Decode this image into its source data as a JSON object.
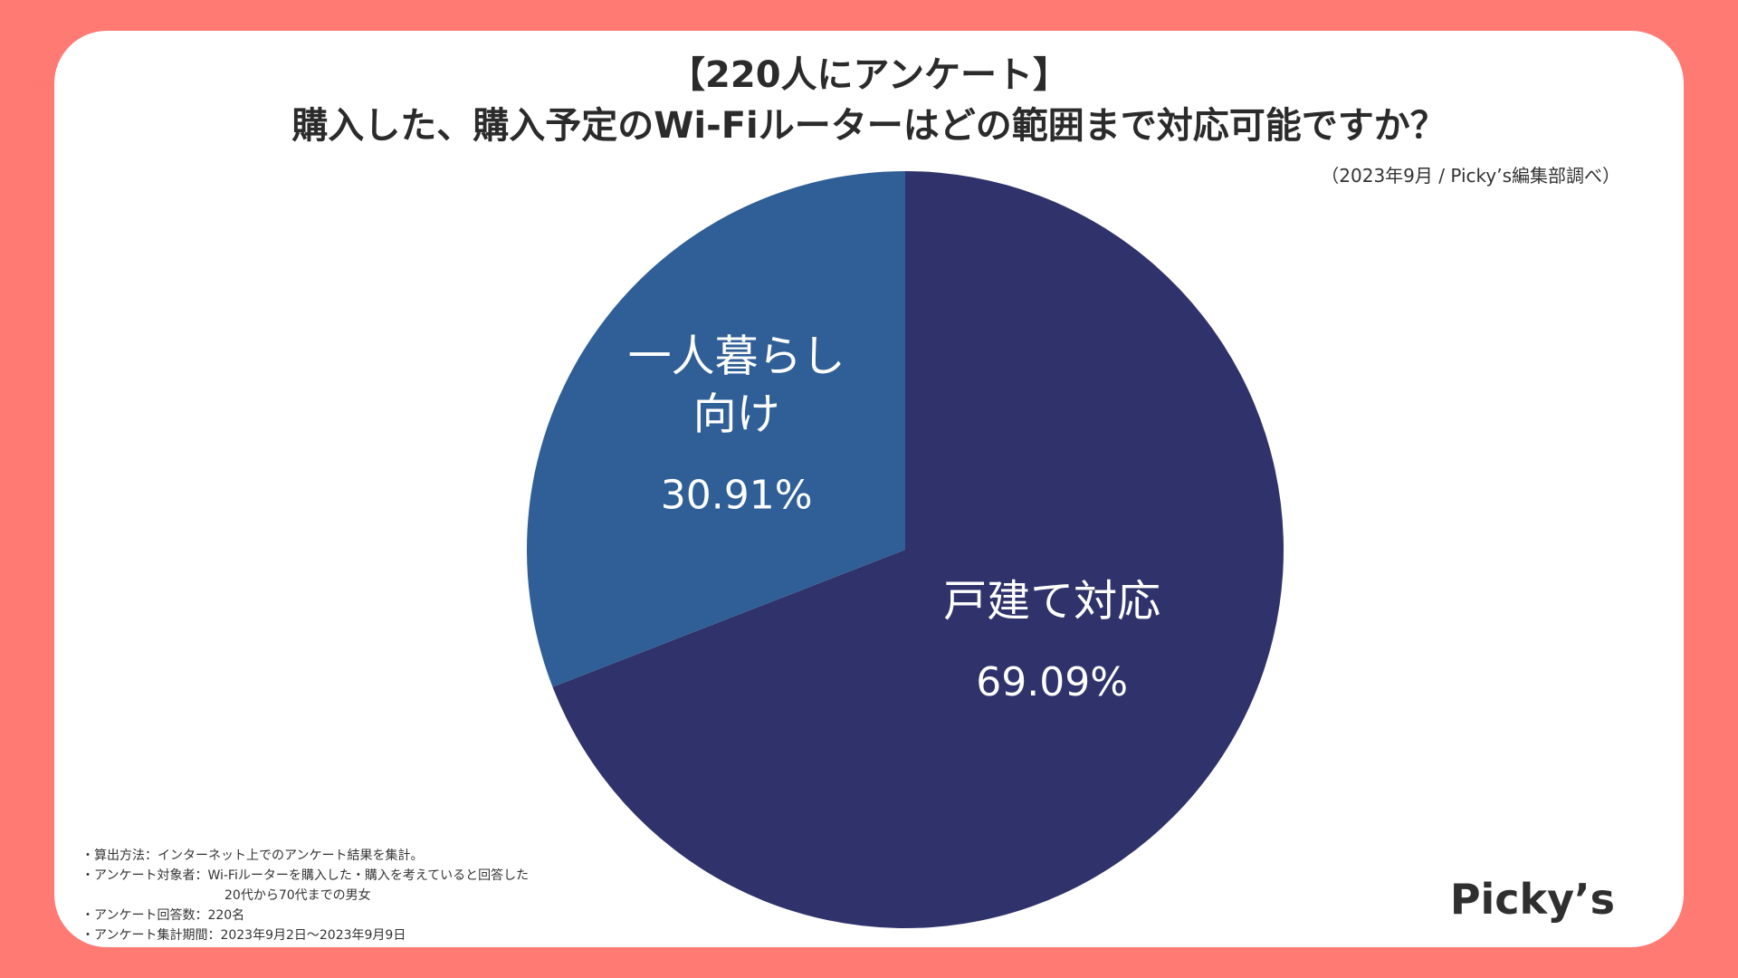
{
  "header": {
    "title_line1": "【220人にアンケート】",
    "title_line2": "購入した、購入予定のWi-Fiルーターはどの範囲まで対応可能ですか？",
    "source": "（2023年9月 / Picky’s編集部調べ）"
  },
  "chart_data": {
    "type": "pie",
    "slices": [
      {
        "label_line1": "戸建て対応",
        "label_line2": "",
        "value": 69.09,
        "value_text": "69.09%",
        "color": "#30336b"
      },
      {
        "label_line1": "一人暮らし",
        "label_line2": "向け",
        "value": 30.91,
        "value_text": "30.91%",
        "color": "#2f5f96"
      }
    ]
  },
  "notes": {
    "method": "・算出方法：インターネット上でのアンケート結果を集計。",
    "target_line1": "・アンケート対象者：Wi-Fiルーターを購入した・購入を考えていると回答した",
    "target_line2": "20代から70代までの男女",
    "respondents": "・アンケート回答数：220名",
    "period": "・アンケート集計期間：2023年9月2日〜2023年9月9日"
  },
  "logo": {
    "text": "Picky’s"
  },
  "colors": {
    "background": "#ff7a73",
    "card": "#ffffff"
  }
}
